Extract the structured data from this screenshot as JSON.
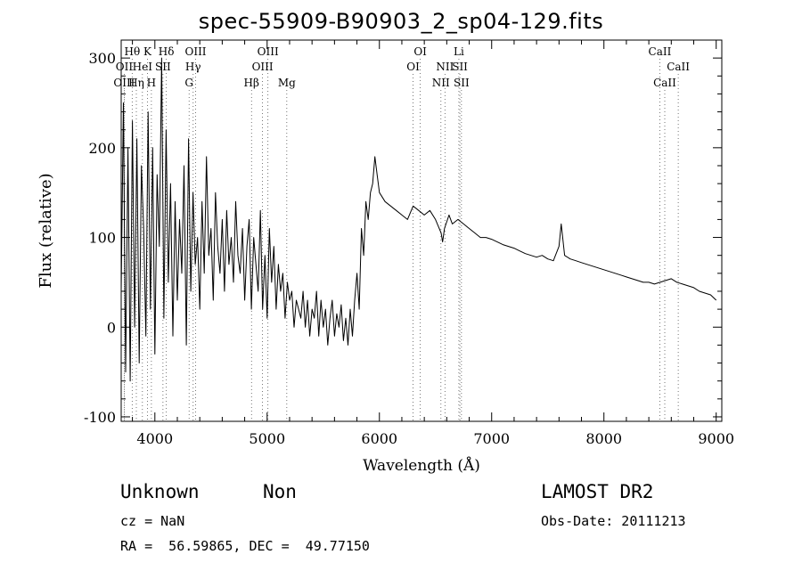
{
  "chart_data": {
    "type": "line",
    "title": "spec-55909-B90903_2_sp04-129.fits",
    "xlabel": "Wavelength (Å)",
    "ylabel": "Flux (relative)",
    "xlim": [
      3700,
      9050
    ],
    "ylim": [
      -105,
      320
    ],
    "x_ticks": [
      4000,
      5000,
      6000,
      7000,
      8000,
      9000
    ],
    "y_ticks": [
      -100,
      0,
      100,
      200,
      300
    ],
    "grid": false,
    "line_color": "#000000",
    "series": [
      {
        "x": [
          3700,
          3720,
          3740,
          3760,
          3780,
          3800,
          3820,
          3840,
          3860,
          3880,
          3900,
          3920,
          3940,
          3960,
          3980,
          4000,
          4020,
          4040,
          4060,
          4080,
          4100,
          4120,
          4140,
          4160,
          4180,
          4200,
          4220,
          4240,
          4260,
          4280,
          4300,
          4320,
          4340,
          4360,
          4380,
          4400,
          4420,
          4440,
          4460,
          4480,
          4500,
          4520,
          4540,
          4560,
          4580,
          4600,
          4620,
          4640,
          4660,
          4680,
          4700,
          4720,
          4740,
          4760,
          4780,
          4800,
          4820,
          4840,
          4860,
          4880,
          4900,
          4920,
          4940,
          4960,
          4980,
          5000,
          5020,
          5040,
          5060,
          5080,
          5100,
          5120,
          5140,
          5160,
          5180,
          5200,
          5220,
          5240,
          5260,
          5280,
          5300,
          5320,
          5340,
          5360,
          5380,
          5400,
          5420,
          5440,
          5460,
          5480,
          5500,
          5520,
          5540,
          5560,
          5580,
          5600,
          5620,
          5640,
          5660,
          5680,
          5700,
          5720,
          5740,
          5760,
          5780,
          5800,
          5820,
          5840,
          5860,
          5880,
          5900,
          5920,
          5940,
          5960,
          5980,
          6000,
          6050,
          6100,
          6150,
          6200,
          6250,
          6300,
          6350,
          6400,
          6450,
          6500,
          6550,
          6563,
          6580,
          6620,
          6650,
          6700,
          6750,
          6800,
          6850,
          6900,
          6950,
          7000,
          7050,
          7100,
          7150,
          7200,
          7250,
          7300,
          7350,
          7400,
          7450,
          7500,
          7550,
          7600,
          7620,
          7650,
          7700,
          7750,
          7800,
          7850,
          7900,
          7950,
          8000,
          8050,
          8100,
          8150,
          8200,
          8250,
          8300,
          8350,
          8400,
          8450,
          8500,
          8550,
          8600,
          8650,
          8700,
          8750,
          8800,
          8850,
          8900,
          8950,
          9000
        ],
        "y": [
          40,
          250,
          -50,
          200,
          -60,
          230,
          0,
          210,
          -40,
          180,
          110,
          -10,
          240,
          20,
          200,
          -30,
          170,
          90,
          300,
          10,
          220,
          50,
          160,
          -10,
          140,
          30,
          120,
          60,
          180,
          -20,
          210,
          40,
          150,
          70,
          100,
          20,
          140,
          60,
          190,
          80,
          110,
          30,
          150,
          90,
          60,
          120,
          40,
          130,
          70,
          100,
          50,
          140,
          80,
          60,
          110,
          30,
          90,
          120,
          20,
          100,
          70,
          40,
          130,
          20,
          80,
          10,
          110,
          50,
          90,
          20,
          70,
          40,
          60,
          10,
          50,
          30,
          40,
          0,
          30,
          20,
          10,
          40,
          0,
          30,
          -10,
          20,
          10,
          40,
          -10,
          30,
          0,
          20,
          -20,
          10,
          30,
          -10,
          15,
          0,
          25,
          -15,
          10,
          -20,
          20,
          -10,
          30,
          60,
          20,
          110,
          80,
          140,
          120,
          150,
          160,
          190,
          170,
          150,
          140,
          135,
          130,
          125,
          120,
          135,
          130,
          125,
          130,
          120,
          105,
          95,
          110,
          125,
          115,
          120,
          115,
          110,
          105,
          100,
          100,
          98,
          95,
          92,
          90,
          88,
          85,
          82,
          80,
          78,
          80,
          76,
          74,
          90,
          115,
          80,
          76,
          74,
          72,
          70,
          68,
          66,
          64,
          62,
          60,
          58,
          56,
          54,
          52,
          50,
          50,
          48,
          50,
          52,
          54,
          50,
          48,
          46,
          44,
          40,
          38,
          36,
          30
        ]
      }
    ],
    "line_markers": [
      {
        "label": "Hθ",
        "x": 3798,
        "row": 1
      },
      {
        "label": "OII",
        "x": 3727,
        "row": 2
      },
      {
        "label": "OIII",
        "x": 3727,
        "row": 3
      },
      {
        "label": "K",
        "x": 3934,
        "row": 1
      },
      {
        "label": "HeI",
        "x": 3889,
        "row": 2
      },
      {
        "label": "Hη",
        "x": 3835,
        "row": 3
      },
      {
        "label": "SII",
        "x": 4072,
        "row": 2
      },
      {
        "label": "H",
        "x": 3969,
        "row": 3
      },
      {
        "label": "Hδ",
        "x": 4102,
        "row": 1
      },
      {
        "label": "OIII",
        "x": 4363,
        "row": 1
      },
      {
        "label": "Hγ",
        "x": 4341,
        "row": 2
      },
      {
        "label": "G",
        "x": 4305,
        "row": 3
      },
      {
        "label": "Hβ",
        "x": 4861,
        "row": 3
      },
      {
        "label": "OIII",
        "x": 5007,
        "row": 1
      },
      {
        "label": "OIII",
        "x": 4959,
        "row": 2
      },
      {
        "label": "Mg",
        "x": 5175,
        "row": 3
      },
      {
        "label": "OI",
        "x": 6364,
        "row": 1
      },
      {
        "label": "OI",
        "x": 6300,
        "row": 2
      },
      {
        "label": "Li",
        "x": 6708,
        "row": 1
      },
      {
        "label": "NII",
        "x": 6584,
        "row": 2
      },
      {
        "label": "SII",
        "x": 6717,
        "row": 2
      },
      {
        "label": "NII",
        "x": 6548,
        "row": 3
      },
      {
        "label": "SII",
        "x": 6731,
        "row": 3
      },
      {
        "label": "CaII",
        "x": 8498,
        "row": 1
      },
      {
        "label": "CaII",
        "x": 8662,
        "row": 2
      },
      {
        "label": "CaII",
        "x": 8542,
        "row": 3
      }
    ]
  },
  "footer": {
    "class_label": "Unknown",
    "subclass_label": "Non",
    "cz_text": "cz = NaN",
    "coords_text": "RA =  56.59865, DEC =  49.77150",
    "survey_label": "LAMOST DR2",
    "obs_date_text": "Obs-Date: 20111213"
  }
}
